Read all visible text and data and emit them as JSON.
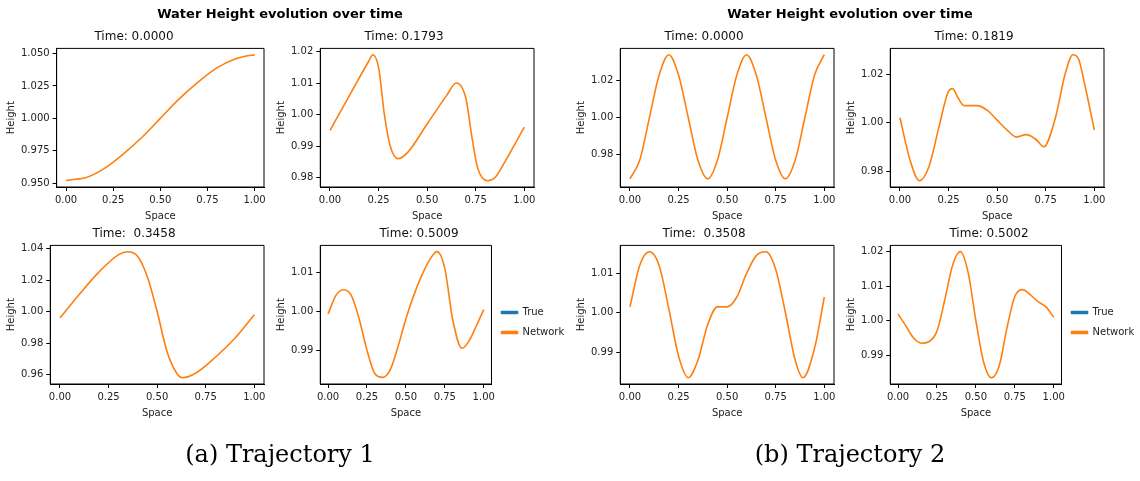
{
  "chart_data": [
    {
      "type": "line",
      "title": "Time: 0.0000",
      "xlabel": "Space",
      "ylabel": "Height",
      "annotations": [
        "Water Height evolution over time",
        "(a) Trajectory 1"
      ],
      "x": [
        0,
        0.05,
        0.1,
        0.2,
        0.3,
        0.4,
        0.5,
        0.6,
        0.7,
        0.8,
        0.9,
        0.95,
        1
      ],
      "series": [
        {
          "color": "#ff7f0e",
          "values": [
            0.952,
            0.953,
            0.954,
            0.961,
            0.972,
            0.985,
            1.0,
            1.015,
            1.028,
            1.039,
            1.046,
            1.048,
            1.049
          ]
        }
      ],
      "xlim": [
        -0.05,
        1.05
      ],
      "xticks": [
        {
          "value": 0,
          "label": "0.00"
        },
        {
          "value": 0.25,
          "label": "0.25"
        },
        {
          "value": 0.5,
          "label": "0.50"
        },
        {
          "value": 0.75,
          "label": "0.75"
        },
        {
          "value": 1,
          "label": "1.00"
        }
      ],
      "ylim": [
        0.947,
        1.054
      ],
      "yticks": [
        {
          "value": 0.95,
          "label": "0.950"
        },
        {
          "value": 0.975,
          "label": "0.975"
        },
        {
          "value": 1,
          "label": "1.000"
        },
        {
          "value": 1.025,
          "label": "1.025"
        },
        {
          "value": 1.05,
          "label": "1.050"
        }
      ]
    },
    {
      "type": "line",
      "title": "Time: 0.1793",
      "xlabel": "Space",
      "ylabel": "Height",
      "x": [
        0,
        0.1,
        0.2,
        0.22,
        0.25,
        0.28,
        0.31,
        0.35,
        0.4,
        0.5,
        0.6,
        0.65,
        0.7,
        0.73,
        0.76,
        0.81,
        0.85,
        0.9,
        1
      ],
      "series": [
        {
          "color": "#ff7f0e",
          "values": [
            0.995,
            1.006,
            1.017,
            1.019,
            1.015,
            1.0,
            0.99,
            0.986,
            0.988,
            0.997,
            1.006,
            1.01,
            1.005,
            0.993,
            0.983,
            0.979,
            0.98,
            0.985,
            0.996
          ]
        }
      ],
      "xlim": [
        -0.05,
        1.05
      ],
      "xticks": [
        {
          "value": 0,
          "label": "0.00"
        },
        {
          "value": 0.25,
          "label": "0.25"
        },
        {
          "value": 0.5,
          "label": "0.50"
        },
        {
          "value": 0.75,
          "label": "0.75"
        },
        {
          "value": 1,
          "label": "1.00"
        }
      ],
      "ylim": [
        0.977,
        1.021
      ],
      "yticks": [
        {
          "value": 0.98,
          "label": "0.98"
        },
        {
          "value": 0.99,
          "label": "0.99"
        },
        {
          "value": 1,
          "label": "1.00"
        },
        {
          "value": 1.01,
          "label": "1.01"
        },
        {
          "value": 1.02,
          "label": "1.02"
        }
      ]
    },
    {
      "type": "line",
      "title": "Time:  0.3458",
      "xlabel": "Space",
      "ylabel": "Height",
      "x": [
        0,
        0.1,
        0.2,
        0.3,
        0.35,
        0.4,
        0.45,
        0.5,
        0.55,
        0.6,
        0.63,
        0.7,
        0.8,
        0.9,
        1
      ],
      "series": [
        {
          "color": "#ff7f0e",
          "values": [
            0.996,
            1.011,
            1.025,
            1.036,
            1.038,
            1.035,
            1.022,
            1.0,
            0.975,
            0.961,
            0.958,
            0.961,
            0.971,
            0.983,
            0.998
          ]
        }
      ],
      "xlim": [
        -0.05,
        1.05
      ],
      "xticks": [
        {
          "value": 0,
          "label": "0.00"
        },
        {
          "value": 0.25,
          "label": "0.25"
        },
        {
          "value": 0.5,
          "label": "0.50"
        },
        {
          "value": 0.75,
          "label": "0.75"
        },
        {
          "value": 1,
          "label": "1.00"
        }
      ],
      "ylim": [
        0.954,
        1.042
      ],
      "yticks": [
        {
          "value": 0.96,
          "label": "0.96"
        },
        {
          "value": 0.98,
          "label": "0.98"
        },
        {
          "value": 1,
          "label": "1.00"
        },
        {
          "value": 1.02,
          "label": "1.02"
        },
        {
          "value": 1.04,
          "label": "1.04"
        }
      ]
    },
    {
      "type": "line",
      "title": "Time: 0.5009",
      "xlabel": "Space",
      "ylabel": "Height",
      "legend": "right",
      "x": [
        0,
        0.05,
        0.1,
        0.15,
        0.2,
        0.25,
        0.3,
        0.35,
        0.4,
        0.45,
        0.5,
        0.55,
        0.6,
        0.65,
        0.7,
        0.75,
        0.8,
        0.86,
        0.9,
        0.95,
        1
      ],
      "series": [
        {
          "name": "True",
          "color": "#1f77b4",
          "values": [
            null,
            null,
            null,
            null,
            null,
            null,
            null,
            null,
            null,
            null,
            null,
            null,
            null,
            null,
            null,
            null,
            null,
            null,
            null,
            null,
            null
          ]
        },
        {
          "name": "Network",
          "color": "#ff7f0e",
          "values": [
            0.9993,
            1.004,
            1.0055,
            1.004,
            0.998,
            0.99,
            0.984,
            0.983,
            0.985,
            0.991,
            0.998,
            1.004,
            1.009,
            1.013,
            1.0153,
            1.011,
            0.998,
            0.9905,
            0.992,
            0.996,
            1.0004
          ]
        }
      ],
      "xlim": [
        -0.05,
        1.05
      ],
      "xticks": [
        {
          "value": 0,
          "label": "0.00"
        },
        {
          "value": 0.25,
          "label": "0.25"
        },
        {
          "value": 0.5,
          "label": "0.50"
        },
        {
          "value": 0.75,
          "label": "0.75"
        },
        {
          "value": 1,
          "label": "1.00"
        }
      ],
      "ylim": [
        0.9813,
        1.0169
      ],
      "yticks": [
        {
          "value": 0.99,
          "label": "0.99"
        },
        {
          "value": 1,
          "label": "1.00"
        },
        {
          "value": 1.01,
          "label": "1.01"
        }
      ]
    },
    {
      "type": "line",
      "title": "Time: 0.0000",
      "xlabel": "Space",
      "ylabel": "Height",
      "annotations": [
        "Water Height evolution over time",
        "(b) Trajectory 2"
      ],
      "x": [
        0,
        0.05,
        0.1,
        0.15,
        0.2,
        0.25,
        0.3,
        0.35,
        0.4,
        0.45,
        0.5,
        0.55,
        0.6,
        0.65,
        0.7,
        0.75,
        0.8,
        0.85,
        0.9,
        0.95,
        1
      ],
      "series": [
        {
          "color": "#ff7f0e",
          "values": [
            0.967,
            0.977,
            1.0,
            1.023,
            1.034,
            1.023,
            1.0,
            0.977,
            0.967,
            0.977,
            1.0,
            1.023,
            1.034,
            1.023,
            1.0,
            0.977,
            0.967,
            0.977,
            1.0,
            1.023,
            1.034
          ]
        }
      ],
      "xlim": [
        -0.05,
        1.05
      ],
      "xticks": [
        {
          "value": 0,
          "label": "0.00"
        },
        {
          "value": 0.25,
          "label": "0.25"
        },
        {
          "value": 0.5,
          "label": "0.50"
        },
        {
          "value": 0.75,
          "label": "0.75"
        },
        {
          "value": 1,
          "label": "1.00"
        }
      ],
      "ylim": [
        0.9626,
        1.0374
      ],
      "yticks": [
        {
          "value": 0.98,
          "label": "0.98"
        },
        {
          "value": 1,
          "label": "1.00"
        },
        {
          "value": 1.02,
          "label": "1.02"
        }
      ]
    },
    {
      "type": "line",
      "title": "Time: 0.1819",
      "xlabel": "Space",
      "ylabel": "Height",
      "x": [
        0,
        0.05,
        0.1,
        0.15,
        0.2,
        0.25,
        0.27,
        0.3,
        0.33,
        0.4,
        0.45,
        0.5,
        0.55,
        0.6,
        0.65,
        0.7,
        0.74,
        0.8,
        0.85,
        0.89,
        0.92,
        0.95,
        1
      ],
      "series": [
        {
          "color": "#ff7f0e",
          "values": [
            1.002,
            0.985,
            0.976,
            0.982,
            0.998,
            1.013,
            1.014,
            1.01,
            1.007,
            1.007,
            1.005,
            1.001,
            0.997,
            0.994,
            0.995,
            0.993,
            0.99,
            1.002,
            1.02,
            1.028,
            1.026,
            1.016,
            0.997
          ]
        }
      ],
      "xlim": [
        -0.05,
        1.05
      ],
      "xticks": [
        {
          "value": 0,
          "label": "0.00"
        },
        {
          "value": 0.25,
          "label": "0.25"
        },
        {
          "value": 0.5,
          "label": "0.50"
        },
        {
          "value": 0.75,
          "label": "0.75"
        },
        {
          "value": 1,
          "label": "1.00"
        }
      ],
      "ylim": [
        0.9734,
        1.0306
      ],
      "yticks": [
        {
          "value": 0.98,
          "label": "0.98"
        },
        {
          "value": 1,
          "label": "1.00"
        },
        {
          "value": 1.02,
          "label": "1.02"
        }
      ]
    },
    {
      "type": "line",
      "title": "Time:  0.3508",
      "xlabel": "Space",
      "ylabel": "Height",
      "x": [
        0,
        0.05,
        0.1,
        0.15,
        0.2,
        0.25,
        0.3,
        0.35,
        0.4,
        0.45,
        0.5,
        0.55,
        0.6,
        0.65,
        0.7,
        0.75,
        0.8,
        0.85,
        0.89,
        0.95,
        1
      ],
      "series": [
        {
          "color": "#ff7f0e",
          "values": [
            1.0015,
            1.012,
            1.0155,
            1.012,
            1.001,
            0.989,
            0.9835,
            0.988,
            0.997,
            1.0015,
            1.0015,
            1.004,
            1.01,
            1.0145,
            1.0155,
            1.011,
            1.0,
            0.988,
            0.9835,
            0.991,
            1.004
          ]
        }
      ],
      "xlim": [
        -0.05,
        1.05
      ],
      "xticks": [
        {
          "value": 0,
          "label": "0.00"
        },
        {
          "value": 0.25,
          "label": "0.25"
        },
        {
          "value": 0.5,
          "label": "0.50"
        },
        {
          "value": 0.75,
          "label": "0.75"
        },
        {
          "value": 1,
          "label": "1.00"
        }
      ],
      "ylim": [
        0.9819,
        1.0171
      ],
      "yticks": [
        {
          "value": 0.99,
          "label": "0.99"
        },
        {
          "value": 1,
          "label": "1.00"
        },
        {
          "value": 1.01,
          "label": "1.01"
        }
      ]
    },
    {
      "type": "line",
      "title": "Time: 0.5002",
      "xlabel": "Space",
      "ylabel": "Height",
      "legend": "right",
      "x": [
        0,
        0.05,
        0.1,
        0.15,
        0.2,
        0.25,
        0.3,
        0.35,
        0.4,
        0.45,
        0.5,
        0.55,
        0.6,
        0.65,
        0.7,
        0.75,
        0.8,
        0.85,
        0.9,
        0.95,
        1
      ],
      "series": [
        {
          "name": "True",
          "color": "#1f77b4",
          "values": [
            null,
            null,
            null,
            null,
            null,
            null,
            null,
            null,
            null,
            null,
            null,
            null,
            null,
            null,
            null,
            null,
            null,
            null,
            null,
            null,
            null
          ]
        },
        {
          "name": "Network",
          "color": "#ff7f0e",
          "values": [
            1.002,
            0.9985,
            0.995,
            0.9935,
            0.994,
            0.997,
            1.006,
            1.016,
            1.02,
            1.014,
            1.0,
            0.988,
            0.9835,
            0.987,
            0.998,
            1.007,
            1.009,
            1.0075,
            1.0055,
            1.004,
            1.001
          ]
        }
      ],
      "xlim": [
        -0.05,
        1.05
      ],
      "xticks": [
        {
          "value": 0,
          "label": "0.00"
        },
        {
          "value": 0.25,
          "label": "0.25"
        },
        {
          "value": 0.5,
          "label": "0.50"
        },
        {
          "value": 0.75,
          "label": "0.75"
        },
        {
          "value": 1,
          "label": "1.00"
        }
      ],
      "ylim": [
        0.9817,
        1.0218
      ],
      "yticks": [
        {
          "value": 0.99,
          "label": "0.99"
        },
        {
          "value": 1,
          "label": "1.00"
        },
        {
          "value": 1.01,
          "label": "1.01"
        },
        {
          "value": 1.02,
          "label": "1.02"
        }
      ]
    }
  ]
}
